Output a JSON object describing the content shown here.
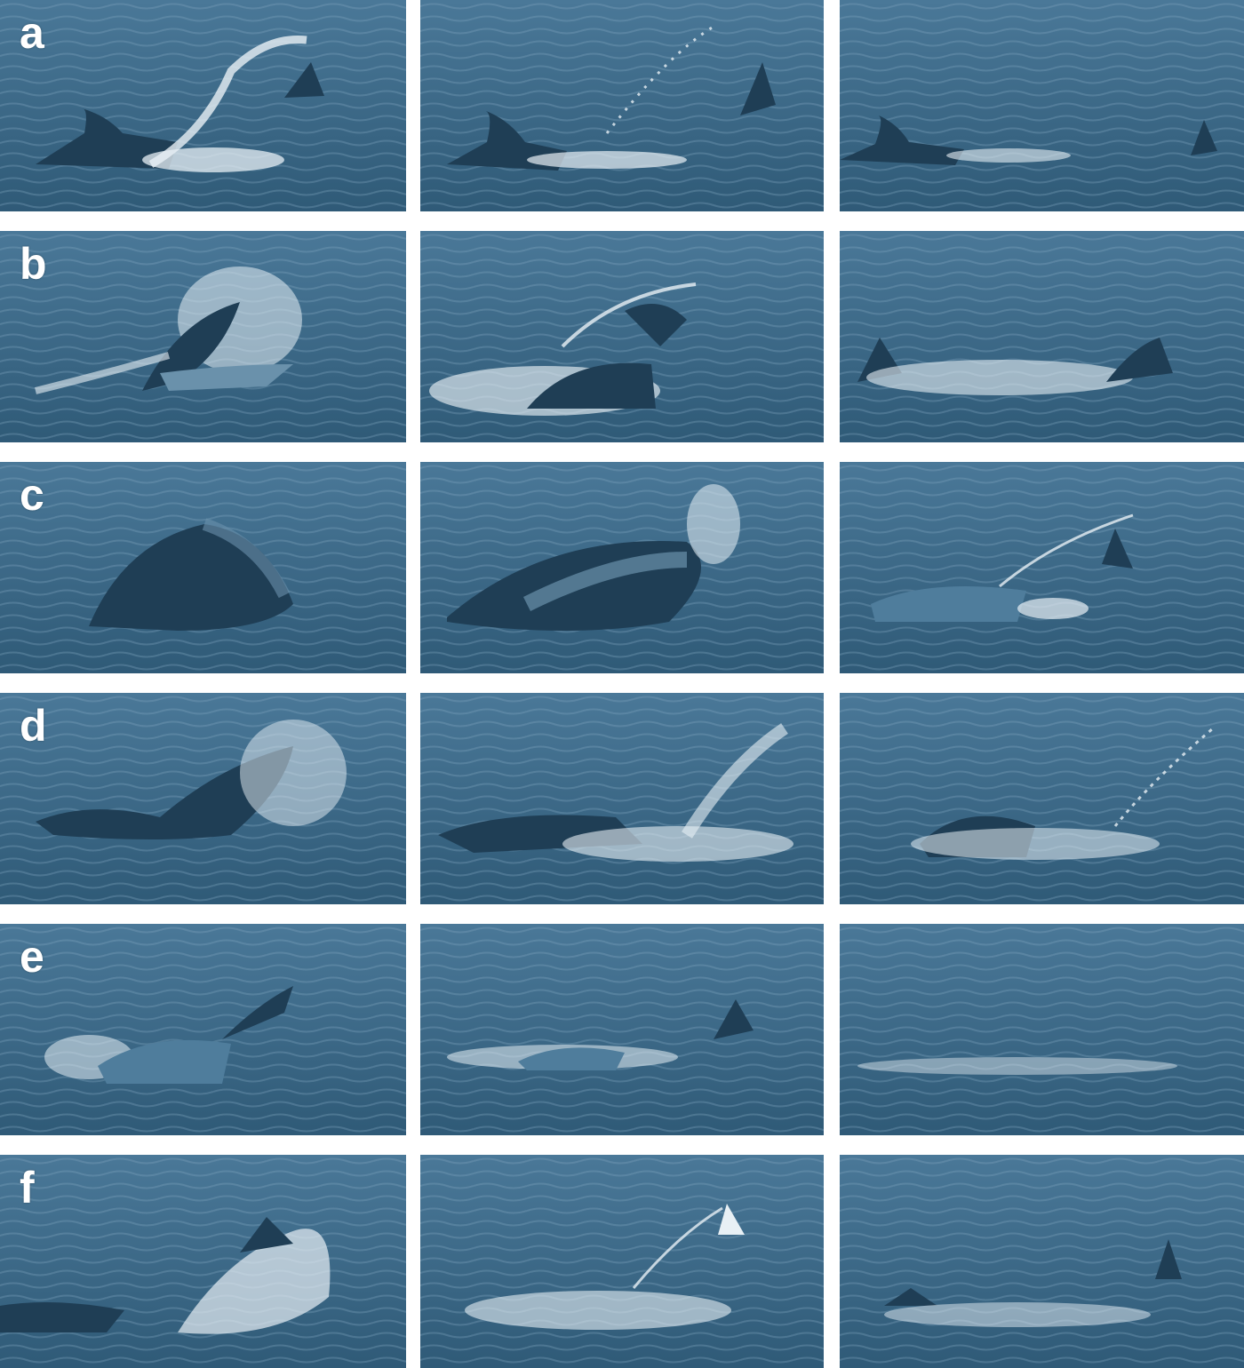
{
  "figure": {
    "rows": [
      {
        "label": "a",
        "frames": 3
      },
      {
        "label": "b",
        "frames": 3
      },
      {
        "label": "c",
        "frames": 3
      },
      {
        "label": "d",
        "frames": 3
      },
      {
        "label": "e",
        "frames": 3
      },
      {
        "label": "f",
        "frames": 3
      }
    ],
    "colors": {
      "water_dark": "#2f5a77",
      "water_mid": "#4a7898",
      "water_light": "#7ea3bc",
      "animal": "#1f3e55",
      "splash": "#e8f0f5",
      "separator": "#ffffff"
    }
  }
}
